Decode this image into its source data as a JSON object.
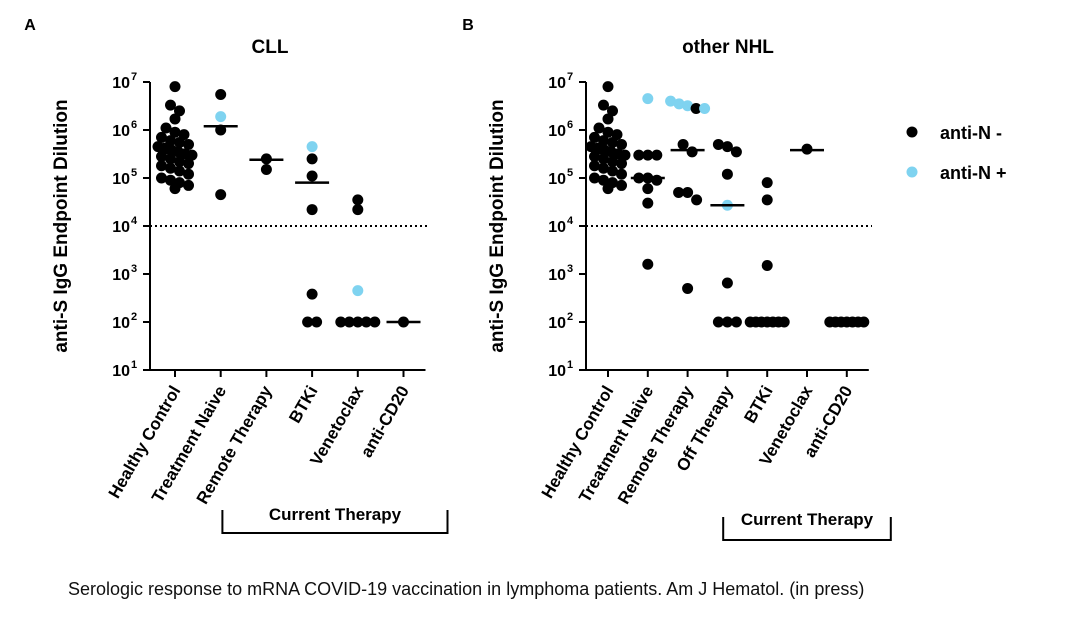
{
  "caption": "Serologic response to mRNA COVID-19 vaccination in lymphoma patients. Am J Hematol. (in press)",
  "colors": {
    "negative": "#000000",
    "positive": "#7fd3f0"
  },
  "legend": {
    "negative": "anti-N -",
    "positive": "anti-N +"
  },
  "chart_data": [
    {
      "panel": "A",
      "type": "scatter",
      "title": "CLL",
      "ylabel": "anti-S IgG Endpoint Dilution",
      "yscale": "log",
      "ylim": [
        10,
        10000000
      ],
      "yticks": [
        {
          "base": "10",
          "exp": "1"
        },
        {
          "base": "10",
          "exp": "2"
        },
        {
          "base": "10",
          "exp": "3"
        },
        {
          "base": "10",
          "exp": "4"
        },
        {
          "base": "10",
          "exp": "5"
        },
        {
          "base": "10",
          "exp": "6"
        },
        {
          "base": "10",
          "exp": "7"
        }
      ],
      "threshold": 10000,
      "categories": [
        "Healthy Control",
        "Treatment Naive",
        "Remote Therapy",
        "BTKi",
        "Venetoclax",
        "anti-CD20"
      ],
      "bracket": {
        "label": "Current Therapy",
        "from": 2,
        "to": 5
      },
      "groups": [
        {
          "neg": [
            8000000,
            3300000,
            2500000,
            1700000,
            1100000,
            900000,
            800000,
            700000,
            600000,
            550000,
            500000,
            450000,
            420000,
            380000,
            350000,
            320000,
            300000,
            280000,
            250000,
            220000,
            200000,
            180000,
            160000,
            140000,
            120000,
            100000,
            90000,
            80000,
            70000,
            60000
          ],
          "pos": [],
          "median": 330000
        },
        {
          "neg": [
            5500000,
            1000000,
            45000
          ],
          "pos": [
            1900000
          ],
          "median": 1200000
        },
        {
          "neg": [
            250000,
            150000
          ],
          "pos": [],
          "median": 240000
        },
        {
          "neg": [
            250000,
            110000,
            22000,
            380,
            100,
            100
          ],
          "pos": [
            450000
          ],
          "median": 80000
        },
        {
          "neg": [
            35000,
            22000,
            100,
            100,
            100,
            100,
            100
          ],
          "pos": [
            450
          ],
          "median": 100
        },
        {
          "neg": [
            100
          ],
          "pos": [],
          "median": 100
        }
      ]
    },
    {
      "panel": "B",
      "type": "scatter",
      "title": "other NHL",
      "ylabel": "anti-S IgG Endpoint Dilution",
      "yscale": "log",
      "ylim": [
        10,
        10000000
      ],
      "yticks": [
        {
          "base": "10",
          "exp": "1"
        },
        {
          "base": "10",
          "exp": "2"
        },
        {
          "base": "10",
          "exp": "3"
        },
        {
          "base": "10",
          "exp": "4"
        },
        {
          "base": "10",
          "exp": "5"
        },
        {
          "base": "10",
          "exp": "6"
        },
        {
          "base": "10",
          "exp": "7"
        }
      ],
      "threshold": 10000,
      "categories": [
        "Healthy Control",
        "Treatment Naive",
        "Remote Therapy",
        "Off Therapy",
        "BTKi",
        "Venetoclax",
        "anti-CD20"
      ],
      "bracket": {
        "label": "Current Therapy",
        "from": 4,
        "to": 6
      },
      "groups": [
        {
          "neg": [
            8000000,
            3300000,
            2500000,
            1700000,
            1100000,
            900000,
            800000,
            700000,
            600000,
            550000,
            500000,
            450000,
            420000,
            380000,
            350000,
            320000,
            300000,
            280000,
            250000,
            220000,
            200000,
            180000,
            160000,
            140000,
            120000,
            100000,
            90000,
            80000,
            70000,
            60000
          ],
          "pos": [],
          "median": 330000
        },
        {
          "neg": [
            300000,
            300000,
            300000,
            100000,
            100000,
            90000,
            60000,
            30000,
            1600
          ],
          "pos": [
            4500000
          ],
          "median": 100000
        },
        {
          "neg": [
            2800000,
            500000,
            350000,
            50000,
            50000,
            35000,
            500
          ],
          "pos": [
            4000000,
            3500000,
            3200000,
            2800000
          ],
          "median": 380000
        },
        {
          "neg": [
            500000,
            450000,
            350000,
            120000,
            650,
            100,
            100,
            100
          ],
          "pos": [
            27000
          ],
          "median": 27000
        },
        {
          "neg": [
            80000,
            35000,
            1500,
            100,
            100,
            100,
            100,
            100,
            100,
            100
          ],
          "pos": [],
          "median": 100
        },
        {
          "neg": [
            400000
          ],
          "pos": [],
          "median": 380000
        },
        {
          "neg": [
            100,
            100,
            100,
            100,
            100,
            100,
            100
          ],
          "pos": [],
          "median": 100
        }
      ]
    }
  ]
}
